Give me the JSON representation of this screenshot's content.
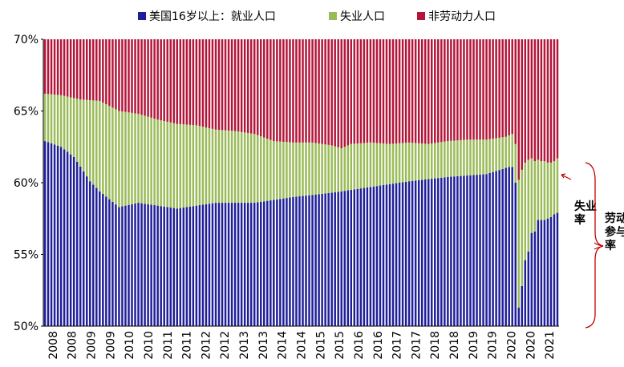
{
  "chart_data": {
    "type": "bar",
    "stacked": true,
    "ylim": [
      50,
      70
    ],
    "yticks": [
      "70%",
      "65%",
      "60%",
      "55%",
      "50%"
    ],
    "ytick_values": [
      70,
      65,
      60,
      55,
      50
    ],
    "xtick_labels": [
      "2008",
      "2008",
      "2009",
      "2009",
      "2010",
      "2010",
      "2011",
      "2011",
      "2012",
      "2012",
      "2013",
      "2013",
      "2014",
      "2014",
      "2015",
      "2015",
      "2016",
      "2016",
      "2017",
      "2017",
      "2018",
      "2018",
      "2019",
      "2019",
      "2020",
      "2020",
      "2021"
    ],
    "x_start": "2008-01",
    "x_end": "2021-04",
    "series": [
      {
        "name": "美国16岁以上：就业人口",
        "color": "#1f1f99"
      },
      {
        "name": "失业人口",
        "color": "#9bbb59"
      },
      {
        "name": "非劳动力人口",
        "color": "#b3163a"
      }
    ],
    "employment_anchors": [
      [
        "2008-01",
        62.9
      ],
      [
        "2008-06",
        62.5
      ],
      [
        "2008-10",
        61.8
      ],
      [
        "2009-03",
        60.1
      ],
      [
        "2009-06",
        59.4
      ],
      [
        "2009-12",
        58.3
      ],
      [
        "2010-06",
        58.6
      ],
      [
        "2011-06",
        58.2
      ],
      [
        "2012-06",
        58.6
      ],
      [
        "2013-06",
        58.6
      ],
      [
        "2014-06",
        59.0
      ],
      [
        "2015-06",
        59.3
      ],
      [
        "2016-06",
        59.7
      ],
      [
        "2017-06",
        60.1
      ],
      [
        "2018-06",
        60.4
      ],
      [
        "2019-06",
        60.6
      ],
      [
        "2020-01",
        61.1
      ],
      [
        "2020-02",
        61.1
      ],
      [
        "2020-03",
        60.0
      ],
      [
        "2020-04",
        51.3
      ],
      [
        "2020-05",
        52.8
      ],
      [
        "2020-06",
        54.6
      ],
      [
        "2020-07",
        55.2
      ],
      [
        "2020-08",
        56.5
      ],
      [
        "2020-09",
        56.6
      ],
      [
        "2020-10",
        57.4
      ],
      [
        "2020-11",
        57.4
      ],
      [
        "2020-12",
        57.4
      ],
      [
        "2021-01",
        57.5
      ],
      [
        "2021-02",
        57.6
      ],
      [
        "2021-03",
        57.8
      ],
      [
        "2021-04",
        57.9
      ]
    ],
    "participation_anchors": [
      [
        "2008-01",
        66.2
      ],
      [
        "2008-06",
        66.1
      ],
      [
        "2008-12",
        65.8
      ],
      [
        "2009-06",
        65.7
      ],
      [
        "2009-12",
        65.0
      ],
      [
        "2010-06",
        64.8
      ],
      [
        "2010-12",
        64.4
      ],
      [
        "2011-06",
        64.1
      ],
      [
        "2011-12",
        64.0
      ],
      [
        "2012-06",
        63.7
      ],
      [
        "2012-12",
        63.6
      ],
      [
        "2013-06",
        63.4
      ],
      [
        "2013-12",
        62.9
      ],
      [
        "2014-06",
        62.8
      ],
      [
        "2014-12",
        62.8
      ],
      [
        "2015-06",
        62.6
      ],
      [
        "2015-09",
        62.4
      ],
      [
        "2015-12",
        62.7
      ],
      [
        "2016-06",
        62.8
      ],
      [
        "2016-12",
        62.7
      ],
      [
        "2017-06",
        62.8
      ],
      [
        "2017-12",
        62.7
      ],
      [
        "2018-06",
        62.9
      ],
      [
        "2018-12",
        63.0
      ],
      [
        "2019-06",
        63.0
      ],
      [
        "2019-12",
        63.2
      ],
      [
        "2020-02",
        63.4
      ],
      [
        "2020-03",
        62.7
      ],
      [
        "2020-04",
        60.2
      ],
      [
        "2020-05",
        60.9
      ],
      [
        "2020-06",
        61.4
      ],
      [
        "2020-07",
        61.6
      ],
      [
        "2020-08",
        61.7
      ],
      [
        "2020-09",
        61.5
      ],
      [
        "2020-10",
        61.6
      ],
      [
        "2020-11",
        61.5
      ],
      [
        "2020-12",
        61.5
      ],
      [
        "2021-01",
        61.4
      ],
      [
        "2021-02",
        61.4
      ],
      [
        "2021-03",
        61.5
      ],
      [
        "2021-04",
        61.7
      ]
    ],
    "annotations": {
      "unemployment_rate": "失业率",
      "participation_rate": "劳动参与率"
    },
    "legend_position": "top",
    "grid": false
  }
}
